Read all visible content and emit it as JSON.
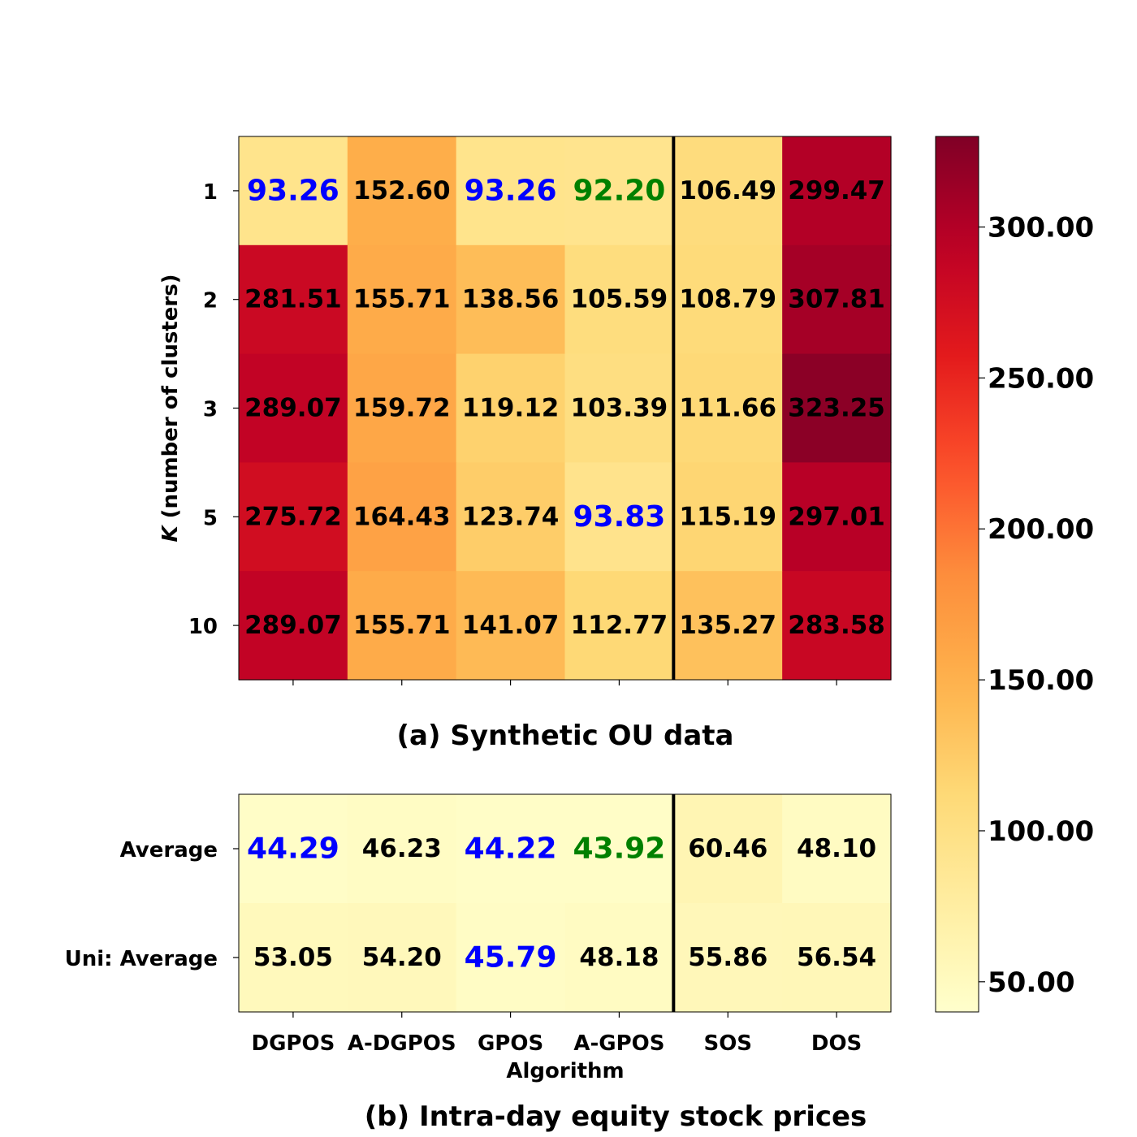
{
  "chart_data": [
    {
      "type": "heatmap",
      "title": "(a) Synthetic OU data",
      "ylabel_prefix": "K",
      "ylabel_suffix": " (number of clusters)",
      "xlabel": "",
      "x_categories": [
        "DGPOS",
        "A-DGPOS",
        "GPOS",
        "A-GPOS",
        "SOS",
        "DOS"
      ],
      "y_categories": [
        "1",
        "2",
        "3",
        "5",
        "10"
      ],
      "values": [
        [
          93.26,
          152.6,
          93.26,
          92.2,
          106.49,
          299.47
        ],
        [
          281.51,
          155.71,
          138.56,
          105.59,
          108.79,
          307.81
        ],
        [
          289.07,
          159.72,
          119.12,
          103.39,
          111.66,
          323.25
        ],
        [
          275.72,
          164.43,
          123.74,
          93.83,
          115.19,
          297.01
        ],
        [
          289.07,
          155.71,
          141.07,
          112.77,
          135.27,
          283.58
        ]
      ],
      "labels": [
        [
          "93.26",
          "152.60",
          "93.26",
          "92.20",
          "106.49",
          "299.47"
        ],
        [
          "281.51",
          "155.71",
          "138.56",
          "105.59",
          "108.79",
          "307.81"
        ],
        [
          "289.07",
          "159.72",
          "119.12",
          "103.39",
          "111.66",
          "323.25"
        ],
        [
          "275.72",
          "164.43",
          "123.74",
          "93.83",
          "115.19",
          "297.01"
        ],
        [
          "289.07",
          "155.71",
          "141.07",
          "112.77",
          "135.27",
          "283.58"
        ]
      ],
      "highlight": [
        [
          "blue",
          "",
          "blue",
          "green",
          "",
          ""
        ],
        [
          "",
          "",
          "",
          "",
          "",
          ""
        ],
        [
          "",
          "",
          "",
          "",
          "",
          ""
        ],
        [
          "",
          "",
          "",
          "blue",
          "",
          ""
        ],
        [
          "",
          "",
          "",
          "",
          "",
          ""
        ]
      ],
      "separator_after_column": "A-GPOS"
    },
    {
      "type": "heatmap",
      "title": "(b) Intra-day equity stock prices",
      "xlabel": "Algorithm",
      "ylabel": "",
      "x_categories": [
        "DGPOS",
        "A-DGPOS",
        "GPOS",
        "A-GPOS",
        "SOS",
        "DOS"
      ],
      "y_categories": [
        "Average",
        "Uni: Average"
      ],
      "values": [
        [
          44.29,
          46.23,
          44.22,
          43.92,
          60.46,
          48.1
        ],
        [
          53.05,
          54.2,
          45.79,
          48.18,
          55.86,
          56.54
        ]
      ],
      "labels": [
        [
          "44.29",
          "46.23",
          "44.22",
          "43.92",
          "60.46",
          "48.10"
        ],
        [
          "53.05",
          "54.20",
          "45.79",
          "48.18",
          "55.86",
          "56.54"
        ]
      ],
      "highlight": [
        [
          "blue",
          "",
          "blue",
          "green",
          "",
          ""
        ],
        [
          "",
          "",
          "blue",
          "",
          "",
          ""
        ]
      ],
      "separator_after_column": "A-GPOS"
    }
  ],
  "colorbar": {
    "colormap": "YlOrRd",
    "range": [
      40,
      330
    ],
    "ticks": [
      50,
      100,
      150,
      200,
      250,
      300
    ],
    "tick_labels": [
      "50.00",
      "100.00",
      "150.00",
      "200.00",
      "250.00",
      "300.00"
    ]
  },
  "colors": {
    "highlight_blue": "#0000ff",
    "highlight_green": "#008000",
    "default_text": "#000000",
    "separator": "#000000"
  }
}
